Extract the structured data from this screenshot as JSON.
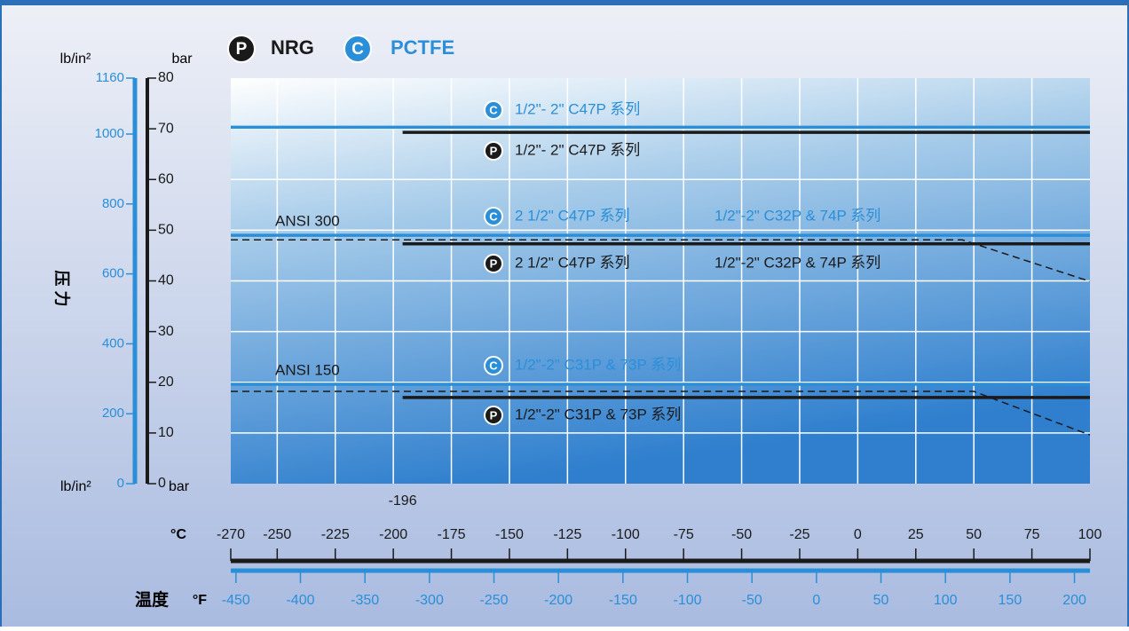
{
  "chart_data": {
    "type": "line",
    "legend": [
      {
        "badge": "P",
        "name": "NRG",
        "color": "#1a1a1a"
      },
      {
        "badge": "C",
        "name": "PCTFE",
        "color": "#2a8fd8"
      }
    ],
    "xlim": [
      -270,
      100
    ],
    "xticks": [
      -270,
      -250,
      -225,
      -200,
      -175,
      -150,
      -125,
      -100,
      -75,
      -50,
      -25,
      0,
      25,
      50,
      75,
      100
    ],
    "x_unit": "°C",
    "x_label": "温度",
    "x2_unit": "°F",
    "x2lim": [
      -454,
      212
    ],
    "x2ticks": [
      -450,
      -400,
      -350,
      -300,
      -250,
      -200,
      -150,
      -100,
      -50,
      0,
      50,
      100,
      150,
      200
    ],
    "ylim": [
      0,
      80
    ],
    "yticks": [
      0,
      10,
      20,
      30,
      40,
      50,
      60,
      70,
      80
    ],
    "y_unit": "bar",
    "y2lim": [
      0,
      1160
    ],
    "y2ticks": [
      0,
      200,
      400,
      600,
      800,
      1000,
      1160
    ],
    "y2_unit": "lb/in²",
    "y_label": "压 力",
    "x_annotation": {
      "value": -196,
      "label": "-196"
    },
    "grid": true,
    "series": [
      {
        "badge": "C",
        "labels": [
          "1/2\"- 2\" C47P 系列"
        ],
        "color": "#2a8fd8",
        "dashed": false,
        "x": [
          -270,
          100
        ],
        "values": [
          70.3,
          70.3
        ]
      },
      {
        "badge": "P",
        "labels": [
          "1/2\"- 2\" C47P 系列"
        ],
        "color": "#1a1a1a",
        "dashed": false,
        "x": [
          -196,
          100
        ],
        "values": [
          69.3,
          69.3
        ]
      },
      {
        "badge": "C",
        "labels": [
          "2 1/2\" C47P 系列",
          "1/2\"-2\" C32P & 74P 系列"
        ],
        "color": "#2a8fd8",
        "dashed": false,
        "x": [
          -270,
          100
        ],
        "values": [
          49,
          49
        ]
      },
      {
        "labels": [
          "ANSI 300"
        ],
        "color": "#1a1a1a",
        "dashed": true,
        "x": [
          -270,
          45,
          100
        ],
        "values": [
          48.1,
          48.1,
          39.9
        ]
      },
      {
        "badge": "P",
        "labels": [
          "2 1/2\" C47P 系列",
          "1/2\"-2\" C32P & 74P 系列"
        ],
        "color": "#1a1a1a",
        "dashed": false,
        "x": [
          -196,
          100
        ],
        "values": [
          47.3,
          47.3
        ]
      },
      {
        "badge": "C",
        "labels": [
          "1/2\"-2\" C31P & 73P 系列"
        ],
        "color": "#2a8fd8",
        "dashed": false,
        "x": [
          -270,
          100
        ],
        "values": [
          19.6,
          19.6
        ]
      },
      {
        "labels": [
          "ANSI 150"
        ],
        "color": "#1a1a1a",
        "dashed": true,
        "x": [
          -270,
          50,
          100
        ],
        "values": [
          18.2,
          18.2,
          9.6
        ]
      },
      {
        "badge": "P",
        "labels": [
          "1/2\"-2\" C31P & 73P 系列"
        ],
        "color": "#1a1a1a",
        "dashed": false,
        "x": [
          -196,
          100
        ],
        "values": [
          17,
          17
        ]
      }
    ]
  }
}
